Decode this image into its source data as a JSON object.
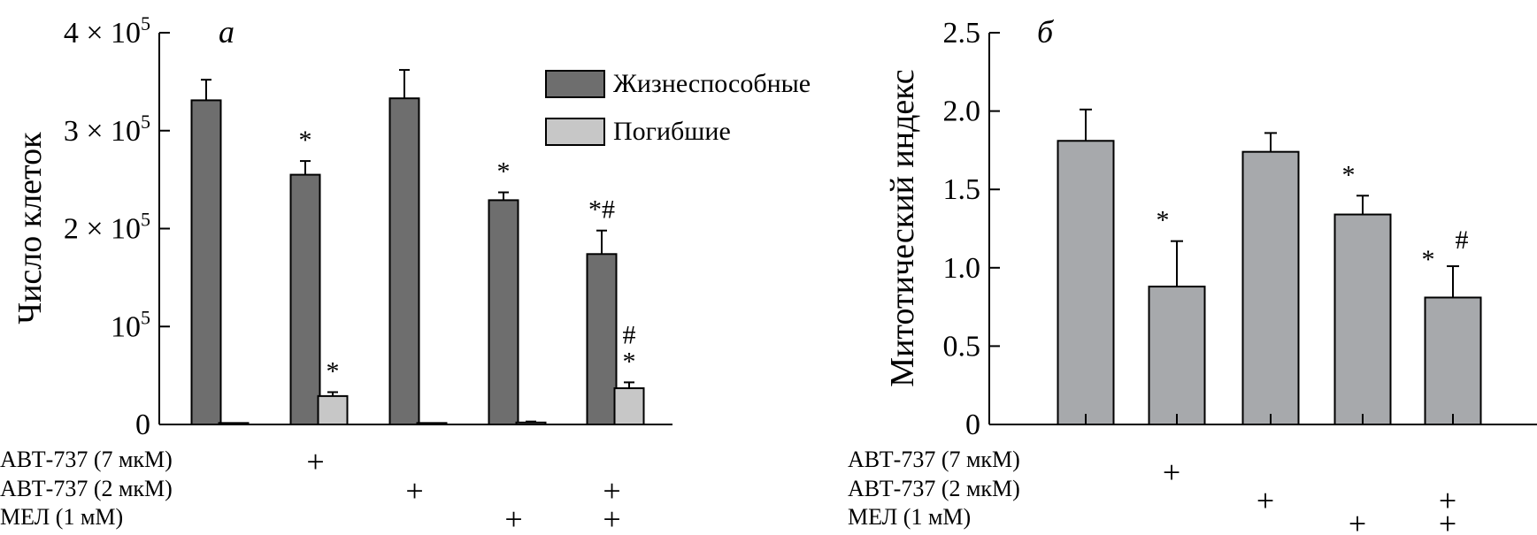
{
  "chart_data": [
    {
      "panel_label": "а",
      "type": "bar",
      "ylabel": "Число клеток",
      "ylim": [
        0,
        400000
      ],
      "yticks": [
        {
          "value": 0,
          "base": "0",
          "exp": ""
        },
        {
          "value": 100000,
          "base": "10",
          "exp": "5"
        },
        {
          "value": 200000,
          "base": "2 × 10",
          "exp": "5"
        },
        {
          "value": 300000,
          "base": "3 × 10",
          "exp": "5"
        },
        {
          "value": 400000,
          "base": "4 × 10",
          "exp": "5"
        }
      ],
      "series": [
        {
          "name": "Жизнеспособные",
          "color": "#6e6e6e",
          "values": [
            331000,
            255000,
            333000,
            229000,
            174000
          ],
          "errors": [
            21000,
            14000,
            29000,
            8000,
            24000
          ],
          "markers": [
            "",
            "*",
            "",
            "*",
            "*#"
          ]
        },
        {
          "name": "Погибшие",
          "color": "#c7c7c7",
          "values": [
            1500,
            29000,
            1500,
            2000,
            37000
          ],
          "errors": [
            0,
            4000,
            0,
            1000,
            6000
          ],
          "markers": [
            "",
            "*",
            "",
            "",
            "# *"
          ]
        }
      ],
      "legend": "top-right",
      "treatments": [
        {
          "label": "АВТ-737 (7 мкМ)",
          "marks": [
            "",
            "+",
            "",
            "",
            ""
          ]
        },
        {
          "label": "АВТ-737 (2 мкМ)",
          "marks": [
            "",
            "",
            "+",
            "",
            "+"
          ]
        },
        {
          "label": "МЕЛ (1 мМ)",
          "marks": [
            "",
            "",
            "",
            "+",
            "+"
          ]
        }
      ]
    },
    {
      "panel_label": "б",
      "type": "bar",
      "ylabel": "Митотический индекс",
      "ylim": [
        0,
        2.5
      ],
      "yticks": [
        {
          "value": 0,
          "label": "0"
        },
        {
          "value": 0.5,
          "label": "0.5"
        },
        {
          "value": 1.0,
          "label": "1.0"
        },
        {
          "value": 1.5,
          "label": "1.5"
        },
        {
          "value": 2.0,
          "label": "2.0"
        },
        {
          "value": 2.5,
          "label": "2.5"
        }
      ],
      "series": [
        {
          "color": "#a7a9ac",
          "values": [
            1.81,
            0.88,
            1.74,
            1.34,
            0.81
          ],
          "errors": [
            0.2,
            0.29,
            0.12,
            0.12,
            0.2
          ],
          "markers": [
            "",
            "*",
            "",
            "*",
            "* #"
          ]
        }
      ],
      "treatments": [
        {
          "label": "АВТ-737 (7 мкМ)",
          "marks": [
            "",
            "+",
            "",
            "",
            ""
          ]
        },
        {
          "label": "АВТ-737 (2 мкМ)",
          "marks": [
            "",
            "",
            "+",
            "",
            "+"
          ]
        },
        {
          "label": "МЕЛ (1 мМ)",
          "marks": [
            "",
            "",
            "",
            "+",
            "+"
          ]
        }
      ]
    }
  ]
}
